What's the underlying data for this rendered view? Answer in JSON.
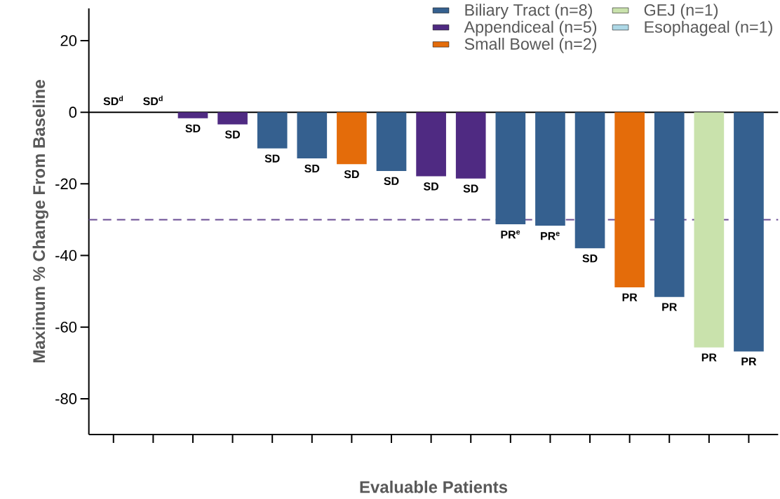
{
  "chart_data": {
    "type": "bar",
    "ylabel": "Maximum % Change From Baseline",
    "xlabel": "Evaluable Patients",
    "categories": [
      null,
      null,
      null,
      null,
      null,
      null,
      null,
      null,
      null,
      null,
      null,
      null,
      null,
      null,
      null,
      null,
      null
    ],
    "ylim": [
      -90,
      29
    ],
    "yticks": [
      -80,
      -60,
      -40,
      -20,
      0,
      20
    ],
    "legend": "top right",
    "series": [
      {
        "name": "Biliary Tract (n=8)",
        "color": "#35608f",
        "values": [
          null,
          null,
          null,
          null,
          -10.1,
          -12.9,
          null,
          -16.4,
          null,
          null,
          -31.3,
          -31.7,
          -38,
          null,
          -51.6,
          null,
          -66.8
        ],
        "value_labels": [
          null,
          null,
          null,
          null,
          "SD",
          "SD",
          null,
          "SD",
          null,
          null,
          "PR$^{e}$",
          "PR$^{e}$",
          "SD",
          null,
          "PR",
          null,
          "PR"
        ]
      },
      {
        "name": "Appendiceal (n=5)",
        "color": "#4f2a82",
        "values": [
          null,
          0,
          -1.7,
          -3.4,
          null,
          null,
          null,
          null,
          -17.9,
          -18.5,
          null,
          null,
          null,
          null,
          null,
          null,
          null
        ],
        "value_labels": [
          null,
          "SD$^{d}$",
          "SD",
          "SD",
          null,
          null,
          null,
          null,
          "SD",
          "SD",
          null,
          null,
          null,
          null,
          null,
          null,
          null
        ]
      },
      {
        "name": "Small Bowel (n=2)",
        "color": "#e46c0a",
        "values": [
          null,
          null,
          null,
          null,
          null,
          null,
          -14.5,
          null,
          null,
          null,
          null,
          null,
          null,
          -48.9,
          null,
          null,
          null
        ],
        "value_labels": [
          null,
          null,
          null,
          null,
          null,
          null,
          "SD",
          null,
          null,
          null,
          null,
          null,
          null,
          "PR",
          null,
          null,
          null
        ]
      },
      {
        "name": "GEJ (n=1)",
        "color": "#c9e2ac",
        "values": [
          null,
          null,
          null,
          null,
          null,
          null,
          null,
          null,
          null,
          null,
          null,
          null,
          null,
          null,
          null,
          -65.7,
          null
        ],
        "value_labels": [
          null,
          null,
          null,
          null,
          null,
          null,
          null,
          null,
          null,
          null,
          null,
          null,
          null,
          null,
          null,
          "PR",
          null
        ]
      },
      {
        "name": "Esophageal (n=1)",
        "color": "#add8e6",
        "values": [
          0,
          null,
          null,
          null,
          null,
          null,
          null,
          null,
          null,
          null,
          null,
          null,
          null,
          null,
          null,
          null,
          null
        ],
        "value_labels": [
          "SD$^{d}$",
          null,
          null,
          null,
          null,
          null,
          null,
          null,
          null,
          null,
          null,
          null,
          null,
          null,
          null,
          null,
          null
        ]
      }
    ],
    "ref_lines": [
      {
        "axis": "y",
        "value": 0,
        "color": "#000000",
        "line_style": "solid"
      },
      {
        "axis": "y",
        "value": -30,
        "color": "#6a4c93",
        "line_style": "dashed"
      }
    ]
  }
}
